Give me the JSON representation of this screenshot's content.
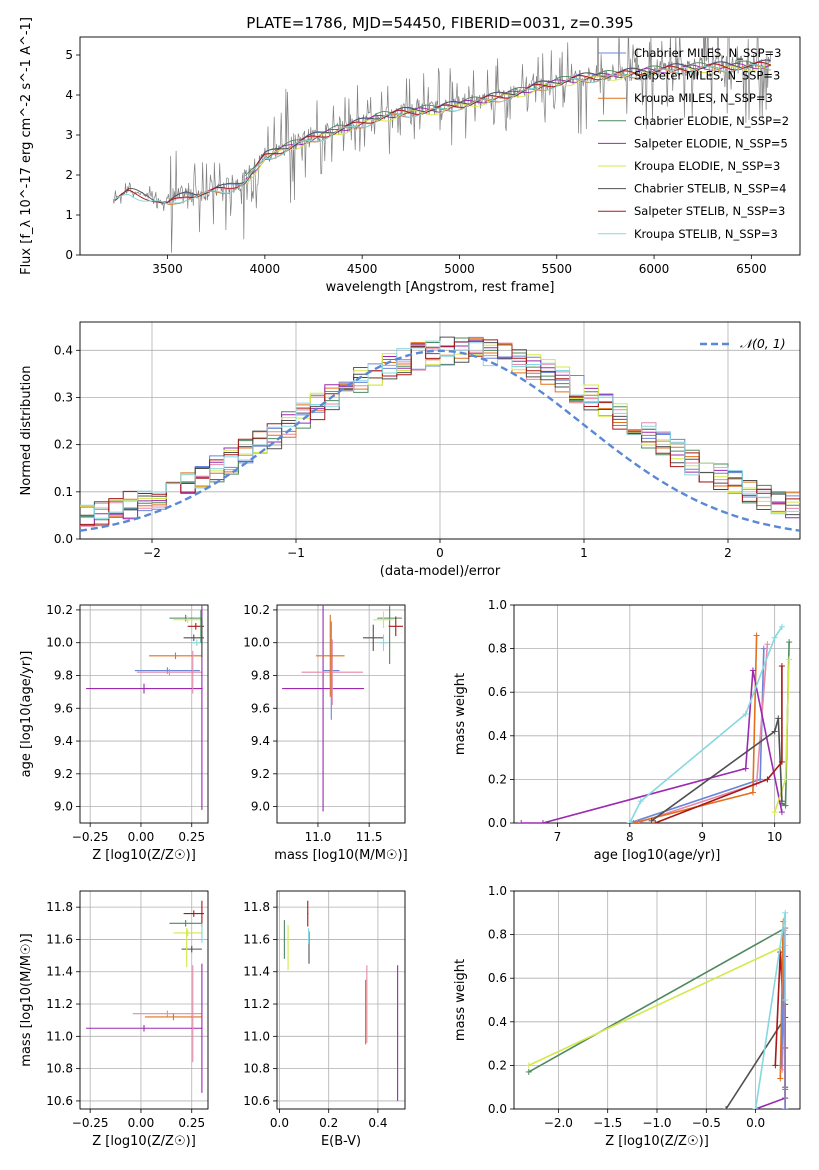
{
  "figure_title": "PLATE=1786, MJD=54450, FIBERID=0031, z=0.395",
  "colors": {
    "chabrier_miles": "#6a86d8",
    "salpeter_miles": "#e58aa8",
    "kroupa_miles": "#e0701c",
    "chabrier_elodie": "#4e8a5e",
    "salpeter_elodie": "#9b2ab0",
    "kroupa_elodie": "#d4e84a",
    "chabrier_stelib": "#505050",
    "salpeter_stelib": "#a81818",
    "kroupa_stelib": "#86d8e0",
    "data": "#808080",
    "normal": "#5b88d6"
  },
  "chart_data": [
    {
      "id": "spectrum",
      "type": "line",
      "title": "PLATE=1786, MJD=54450, FIBERID=0031, z=0.395",
      "xlabel": "wavelength [Angstrom, rest frame]",
      "ylabel": "Flux [f_λ 10^-17 erg cm^-2 s^-1 A^-1]",
      "xlim": [
        3050,
        6750
      ],
      "ylim": [
        0,
        5.45
      ],
      "xticks": [
        3500,
        4000,
        4500,
        5000,
        5500,
        6000,
        6500
      ],
      "yticks": [
        0,
        1,
        2,
        3,
        4,
        5
      ],
      "grid": false,
      "legend_position": "top-right",
      "series": [
        {
          "name": "Chabrier MILES, N_SSP=3",
          "color": "#6a86d8",
          "x_range": [
            3500,
            6600
          ]
        },
        {
          "name": "Salpeter MILES, N_SSP=3",
          "color": "#e58aa8",
          "x_range": [
            3500,
            6600
          ]
        },
        {
          "name": "Kroupa MILES, N_SSP=3",
          "color": "#e0701c",
          "x_range": [
            3500,
            6600
          ]
        },
        {
          "name": "Chabrier ELODIE, N_SSP=2",
          "color": "#4e8a5e",
          "x_range": [
            3900,
            6600
          ]
        },
        {
          "name": "Salpeter ELODIE, N_SSP=5",
          "color": "#9b2ab0",
          "x_range": [
            3900,
            6600
          ]
        },
        {
          "name": "Kroupa ELODIE, N_SSP=3",
          "color": "#d4e84a",
          "x_range": [
            3900,
            6600
          ]
        },
        {
          "name": "Chabrier STELIB, N_SSP=4",
          "color": "#505050",
          "x_range": [
            3230,
            6600
          ]
        },
        {
          "name": "Salpeter STELIB, N_SSP=3",
          "color": "#a81818",
          "x_range": [
            3230,
            6600
          ]
        },
        {
          "name": "Kroupa STELIB, N_SSP=3",
          "color": "#86d8e0",
          "x_range": [
            3230,
            6600
          ]
        }
      ],
      "continuum": {
        "x": [
          3220,
          3300,
          3400,
          3500,
          3600,
          3700,
          3800,
          3900,
          4000,
          4100,
          4200,
          4300,
          4400,
          4500,
          4600,
          4700,
          4800,
          4900,
          5000,
          5100,
          5200,
          5300,
          5400,
          5500,
          5600,
          5700,
          5800,
          5900,
          6000,
          6100,
          6200,
          6300,
          6400,
          6500,
          6600
        ],
        "y": [
          1.4,
          1.6,
          1.5,
          1.3,
          1.55,
          1.6,
          1.7,
          1.9,
          2.5,
          2.7,
          2.9,
          3.05,
          3.2,
          3.35,
          3.5,
          3.6,
          3.65,
          3.7,
          3.8,
          3.9,
          4.0,
          4.1,
          4.25,
          4.35,
          4.45,
          4.5,
          4.55,
          4.6,
          4.65,
          4.7,
          4.72,
          4.75,
          4.75,
          4.78,
          4.8
        ]
      }
    },
    {
      "id": "residuals",
      "type": "line",
      "xlabel": "(data-model)/error",
      "ylabel": "Normed distribution",
      "xlim": [
        -2.5,
        2.5
      ],
      "ylim": [
        0,
        0.46
      ],
      "xticks": [
        -2,
        -1,
        0,
        1,
        2
      ],
      "yticks": [
        0.0,
        0.1,
        0.2,
        0.3,
        0.4
      ],
      "grid": true,
      "legend_position": "top-right",
      "legend": "𝒩(0, 1)",
      "normal_curve": {
        "mean": 0,
        "sigma": 1
      }
    },
    {
      "id": "age_vs_Z",
      "type": "scatter",
      "xlabel": "Z [log10(Z/Z☉)]",
      "ylabel": "age [log10(age/yr)]",
      "xlim": [
        -0.3,
        0.33
      ],
      "ylim": [
        8.9,
        10.23
      ],
      "xticks": [
        -0.25,
        0.0,
        0.25
      ],
      "yticks": [
        9.0,
        9.2,
        9.4,
        9.6,
        9.8,
        10.0,
        10.2
      ],
      "grid": true,
      "points": [
        {
          "color": "#9b2ab0",
          "x": 0.015,
          "xerr": 0.285,
          "y": 9.72,
          "yerr": 0.03
        },
        {
          "color": "#6a86d8",
          "x": 0.13,
          "xerr": 0.16,
          "y": 9.83,
          "yerr": 0.02
        },
        {
          "color": "#e58aa8",
          "x": 0.14,
          "xerr": 0.16,
          "y": 9.82,
          "yerr": 0.02
        },
        {
          "color": "#e0701c",
          "x": 0.17,
          "xerr": 0.13,
          "y": 9.92,
          "yerr": 0.02
        },
        {
          "color": "#4e8a5e",
          "x": 0.22,
          "xerr": 0.08,
          "y": 10.15,
          "yerr": 0.02
        },
        {
          "color": "#d4e84a",
          "x": 0.23,
          "xerr": 0.07,
          "y": 10.14,
          "yerr": 0.02
        },
        {
          "color": "#505050",
          "x": 0.26,
          "xerr": 0.05,
          "y": 10.03,
          "yerr": 0.02
        },
        {
          "color": "#a81818",
          "x": 0.27,
          "xerr": 0.04,
          "y": 10.1,
          "yerr": 0.02
        },
        {
          "color": "#86d8e0",
          "x": 0.275,
          "xerr": 0.03,
          "y": 10.0,
          "yerr": 0.02
        },
        {
          "color": "#9b2ab0",
          "x": 0.3,
          "xerr": 0.004,
          "y": 9.72,
          "yerr": 0.74
        },
        {
          "color": "#e58aa8",
          "x": 0.255,
          "xerr": 0.004,
          "y": 9.82,
          "yerr": 0.13
        },
        {
          "color": "#4e8a5e",
          "x": 0.295,
          "xerr": 0.004,
          "y": 10.1,
          "yerr": 0.1
        },
        {
          "color": "#505050",
          "x": 0.3,
          "xerr": 0.004,
          "y": 10.03,
          "yerr": 0.12
        }
      ]
    },
    {
      "id": "age_vs_mass",
      "type": "scatter",
      "xlabel": "mass [log10(M/M☉)]",
      "ylabel": "",
      "xlim": [
        10.6,
        11.85
      ],
      "ylim": [
        8.9,
        10.23
      ],
      "xticks": [
        11.0,
        11.5
      ],
      "yticks": [
        9.0,
        9.2,
        9.4,
        9.6,
        9.8,
        10.0,
        10.2
      ],
      "grid": true,
      "points": [
        {
          "color": "#9b2ab0",
          "x": 11.05,
          "xerr": 0.4,
          "y": 9.72,
          "yerr": 0.75
        },
        {
          "color": "#6a86d8",
          "x": 11.13,
          "xerr": 0.08,
          "y": 9.83,
          "yerr": 0.3
        },
        {
          "color": "#e58aa8",
          "x": 11.14,
          "xerr": 0.3,
          "y": 9.82,
          "yerr": 0.2
        },
        {
          "color": "#e0701c",
          "x": 11.12,
          "xerr": 0.14,
          "y": 9.92,
          "yerr": 0.25
        },
        {
          "color": "#4e8a5e",
          "x": 11.7,
          "xerr": 0.12,
          "y": 10.15,
          "yerr": 0.28
        },
        {
          "color": "#d4e84a",
          "x": 11.64,
          "xerr": 0.1,
          "y": 10.14,
          "yerr": 0.05
        },
        {
          "color": "#505050",
          "x": 11.54,
          "xerr": 0.1,
          "y": 10.03,
          "yerr": 0.08
        },
        {
          "color": "#a81818",
          "x": 11.76,
          "xerr": 0.07,
          "y": 10.1,
          "yerr": 0.06
        },
        {
          "color": "#86d8e0",
          "x": 11.64,
          "xerr": 0.04,
          "y": 10.0,
          "yerr": 0.05
        }
      ]
    },
    {
      "id": "weight_vs_age",
      "type": "line",
      "xlabel": "age [log10(age/yr)]",
      "ylabel": "mass weight",
      "xlim": [
        6.4,
        10.35
      ],
      "ylim": [
        0,
        1.0
      ],
      "xticks": [
        7,
        8,
        9,
        10
      ],
      "yticks": [
        0.0,
        0.2,
        0.4,
        0.6,
        0.8,
        1.0
      ],
      "grid": true,
      "series": [
        {
          "color": "#6a86d8",
          "x": [
            8.0,
            9.8,
            9.85
          ],
          "y": [
            0.0,
            0.2,
            0.8
          ]
        },
        {
          "color": "#e58aa8",
          "x": [
            8.1,
            9.75,
            9.9
          ],
          "y": [
            0.0,
            0.18,
            0.82
          ]
        },
        {
          "color": "#e0701c",
          "x": [
            8.05,
            9.7,
            9.75
          ],
          "y": [
            0.0,
            0.14,
            0.86
          ]
        },
        {
          "color": "#4e8a5e",
          "x": [
            10.1,
            10.15,
            10.2
          ],
          "y": [
            0.09,
            0.08,
            0.83
          ]
        },
        {
          "color": "#9b2ab0",
          "x": [
            6.5,
            6.8,
            9.6,
            9.7,
            10.1
          ],
          "y": [
            0.0,
            0.0,
            0.25,
            0.7,
            0.05
          ]
        },
        {
          "color": "#d4e84a",
          "x": [
            10.0,
            10.15,
            10.2
          ],
          "y": [
            0.05,
            0.2,
            0.75
          ]
        },
        {
          "color": "#505050",
          "x": [
            8.3,
            10.0,
            10.05,
            10.1
          ],
          "y": [
            0.01,
            0.42,
            0.48,
            0.1
          ]
        },
        {
          "color": "#a81818",
          "x": [
            8.35,
            9.9,
            10.1,
            10.1
          ],
          "y": [
            0.0,
            0.2,
            0.28,
            0.72
          ]
        },
        {
          "color": "#86d8e0",
          "x": [
            8.0,
            8.15,
            9.6,
            10.0,
            10.1
          ],
          "y": [
            0.0,
            0.1,
            0.5,
            0.85,
            0.9
          ]
        }
      ]
    },
    {
      "id": "mass_vs_Z",
      "type": "scatter",
      "xlabel": "Z [log10(Z/Z☉)]",
      "ylabel": "mass [log10(M/M☉)]",
      "xlim": [
        -0.3,
        0.33
      ],
      "ylim": [
        10.55,
        11.9
      ],
      "xticks": [
        -0.25,
        0.0,
        0.25
      ],
      "yticks": [
        10.6,
        10.8,
        11.0,
        11.2,
        11.4,
        11.6,
        11.8
      ],
      "grid": true,
      "points": [
        {
          "color": "#9b2ab0",
          "x": 0.015,
          "xerr": 0.285,
          "y": 11.05,
          "yerr": 0.02
        },
        {
          "color": "#e58aa8",
          "x": 0.13,
          "xerr": 0.17,
          "y": 11.14,
          "yerr": 0.02
        },
        {
          "color": "#e0701c",
          "x": 0.16,
          "xerr": 0.14,
          "y": 11.12,
          "yerr": 0.02
        },
        {
          "color": "#4e8a5e",
          "x": 0.22,
          "xerr": 0.08,
          "y": 11.7,
          "yerr": 0.02
        },
        {
          "color": "#d4e84a",
          "x": 0.23,
          "xerr": 0.07,
          "y": 11.64,
          "yerr": 0.02
        },
        {
          "color": "#505050",
          "x": 0.25,
          "xerr": 0.05,
          "y": 11.54,
          "yerr": 0.02
        },
        {
          "color": "#a81818",
          "x": 0.26,
          "xerr": 0.05,
          "y": 11.76,
          "yerr": 0.02
        },
        {
          "color": "#9b2ab0",
          "x": 0.3,
          "xerr": 0.003,
          "y": 11.05,
          "yerr": 0.4
        },
        {
          "color": "#e58aa8",
          "x": 0.255,
          "xerr": 0.003,
          "y": 11.14,
          "yerr": 0.3
        },
        {
          "color": "#a81818",
          "x": 0.3,
          "xerr": 0.003,
          "y": 11.76,
          "yerr": 0.08
        },
        {
          "color": "#86d8e0",
          "x": 0.3,
          "xerr": 0.003,
          "y": 11.64,
          "yerr": 0.06
        },
        {
          "color": "#d4e84a",
          "x": 0.225,
          "xerr": 0.003,
          "y": 11.55,
          "yerr": 0.12
        }
      ]
    },
    {
      "id": "mass_vs_EBV",
      "type": "scatter",
      "xlabel": "E(B-V)",
      "ylabel": "",
      "xlim": [
        -0.01,
        0.51
      ],
      "ylim": [
        10.55,
        11.9
      ],
      "xticks": [
        0.0,
        0.2,
        0.4
      ],
      "yticks": [
        10.6,
        10.8,
        11.0,
        11.2,
        11.4,
        11.6,
        11.8
      ],
      "grid": true,
      "points": [
        {
          "color": "#4e8a5e",
          "x": 0.02,
          "xerr": 0.002,
          "y": 11.6,
          "yerr": 0.12
        },
        {
          "color": "#d4e84a",
          "x": 0.035,
          "xerr": 0.002,
          "y": 11.55,
          "yerr": 0.14
        },
        {
          "color": "#a81818",
          "x": 0.115,
          "xerr": 0.002,
          "y": 11.76,
          "yerr": 0.08
        },
        {
          "color": "#505050",
          "x": 0.12,
          "xerr": 0.002,
          "y": 11.55,
          "yerr": 0.1
        },
        {
          "color": "#86d8e0",
          "x": 0.118,
          "xerr": 0.002,
          "y": 11.62,
          "yerr": 0.05
        },
        {
          "color": "#e58aa8",
          "x": 0.355,
          "xerr": 0.002,
          "y": 11.2,
          "yerr": 0.24
        },
        {
          "color": "#e0701c",
          "x": 0.35,
          "xerr": 0.002,
          "y": 11.15,
          "yerr": 0.2
        },
        {
          "color": "#9b2ab0",
          "x": 0.48,
          "xerr": 0.002,
          "y": 11.02,
          "yerr": 0.42
        }
      ]
    },
    {
      "id": "weight_vs_Z",
      "type": "line",
      "xlabel": "Z [log10(Z/Z☉)]",
      "ylabel": "mass weight",
      "xlim": [
        -2.45,
        0.45
      ],
      "ylim": [
        0,
        1.0
      ],
      "xticks": [
        -2.0,
        -1.5,
        -1.0,
        -0.5,
        0.0
      ],
      "yticks": [
        0.0,
        0.2,
        0.4,
        0.6,
        0.8,
        1.0
      ],
      "grid": true,
      "series": [
        {
          "color": "#4e8a5e",
          "x": [
            -2.3,
            0.3,
            0.3
          ],
          "y": [
            0.17,
            0.83,
            0.09
          ]
        },
        {
          "color": "#d4e84a",
          "x": [
            -2.3,
            0.3,
            0.3
          ],
          "y": [
            0.2,
            0.75,
            0.05
          ]
        },
        {
          "color": "#505050",
          "x": [
            -0.3,
            0.3,
            0.3,
            0.3
          ],
          "y": [
            0.0,
            0.42,
            0.48,
            0.1
          ]
        },
        {
          "color": "#9b2ab0",
          "x": [
            0.0,
            0.3,
            0.3
          ],
          "y": [
            0.0,
            0.05,
            0.7
          ]
        },
        {
          "color": "#a81818",
          "x": [
            0.2,
            0.25,
            0.3
          ],
          "y": [
            0.2,
            0.72,
            0.28
          ]
        },
        {
          "color": "#e0701c",
          "x": [
            0.25,
            0.28,
            0.3
          ],
          "y": [
            0.14,
            0.86,
            0.0
          ]
        },
        {
          "color": "#e58aa8",
          "x": [
            0.27,
            0.29,
            0.3
          ],
          "y": [
            0.18,
            0.82,
            0.0
          ]
        },
        {
          "color": "#6a86d8",
          "x": [
            0.26,
            0.3,
            0.3
          ],
          "y": [
            0.2,
            0.8,
            0.0
          ]
        },
        {
          "color": "#86d8e0",
          "x": [
            0.0,
            0.3,
            0.3
          ],
          "y": [
            0.0,
            0.9,
            0.5
          ]
        }
      ]
    }
  ]
}
